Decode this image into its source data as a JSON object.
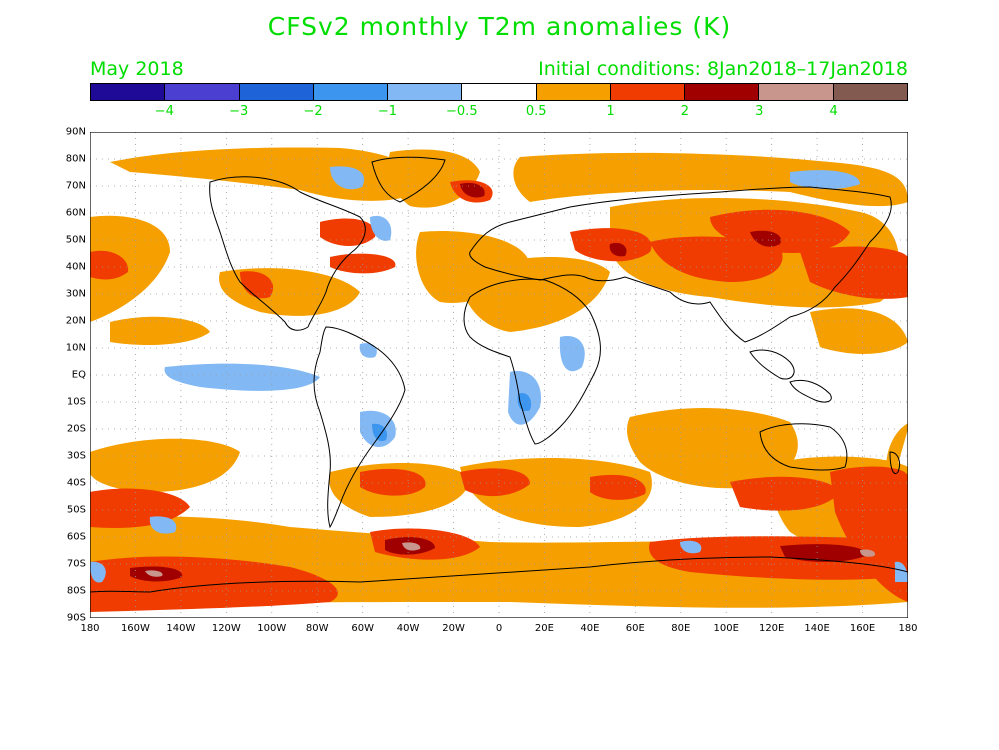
{
  "title": "CFSv2 monthly T2m anomalies (K)",
  "target_month": "May 2018",
  "initial_conditions": "Initial conditions: 8Jan2018–17Jan2018",
  "colorbar": {
    "colors": [
      "#1e0a96",
      "#4a3fd0",
      "#1e64d8",
      "#3c96f0",
      "#82b9f5",
      "#ffffff",
      "#f5a000",
      "#f03c00",
      "#a00000",
      "#c8968c",
      "#825a50"
    ],
    "tick_labels": [
      "−4",
      "−3",
      "−2",
      "−1",
      "−0.5",
      "0.5",
      "1",
      "2",
      "3",
      "4"
    ]
  },
  "axes": {
    "lat_labels": [
      "90N",
      "80N",
      "70N",
      "60N",
      "50N",
      "40N",
      "30N",
      "20N",
      "10N",
      "EQ",
      "10S",
      "20S",
      "30S",
      "40S",
      "50S",
      "60S",
      "70S",
      "80S",
      "90S"
    ],
    "lon_labels": [
      "180",
      "160W",
      "140W",
      "120W",
      "100W",
      "80W",
      "60W",
      "40W",
      "20W",
      "0",
      "20E",
      "40E",
      "60E",
      "80E",
      "100E",
      "120E",
      "140E",
      "160E",
      "180"
    ]
  }
}
